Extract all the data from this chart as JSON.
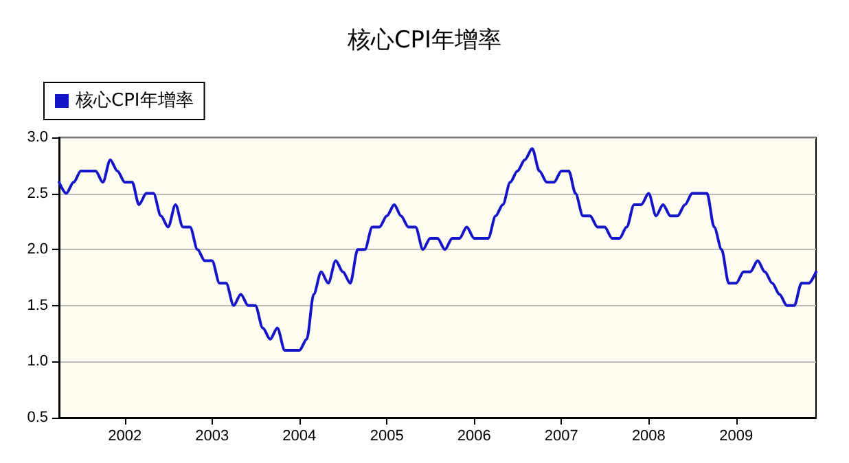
{
  "chart_data": {
    "type": "line",
    "title": "核心CPI年增率",
    "x": [
      "2001-04",
      "2001-05",
      "2001-06",
      "2001-07",
      "2001-08",
      "2001-09",
      "2001-10",
      "2001-11",
      "2001-12",
      "2002-01",
      "2002-02",
      "2002-03",
      "2002-04",
      "2002-05",
      "2002-06",
      "2002-07",
      "2002-08",
      "2002-09",
      "2002-10",
      "2002-11",
      "2002-12",
      "2003-01",
      "2003-02",
      "2003-03",
      "2003-04",
      "2003-05",
      "2003-06",
      "2003-07",
      "2003-08",
      "2003-09",
      "2003-10",
      "2003-11",
      "2003-12",
      "2004-01",
      "2004-02",
      "2004-03",
      "2004-04",
      "2004-05",
      "2004-06",
      "2004-07",
      "2004-08",
      "2004-09",
      "2004-10",
      "2004-11",
      "2004-12",
      "2005-01",
      "2005-02",
      "2005-03",
      "2005-04",
      "2005-05",
      "2005-06",
      "2005-07",
      "2005-08",
      "2005-09",
      "2005-10",
      "2005-11",
      "2005-12",
      "2006-01",
      "2006-02",
      "2006-03",
      "2006-04",
      "2006-05",
      "2006-06",
      "2006-07",
      "2006-08",
      "2006-09",
      "2006-10",
      "2006-11",
      "2006-12",
      "2007-01",
      "2007-02",
      "2007-03",
      "2007-04",
      "2007-05",
      "2007-06",
      "2007-07",
      "2007-08",
      "2007-09",
      "2007-10",
      "2007-11",
      "2007-12",
      "2008-01",
      "2008-02",
      "2008-03",
      "2008-04",
      "2008-05",
      "2008-06",
      "2008-07",
      "2008-08",
      "2008-09",
      "2008-10",
      "2008-11",
      "2008-12",
      "2009-01",
      "2009-02",
      "2009-03",
      "2009-04",
      "2009-05",
      "2009-06",
      "2009-07",
      "2009-08",
      "2009-09",
      "2009-10",
      "2009-11",
      "2009-12"
    ],
    "series": [
      {
        "name": "核心CPI年增率",
        "color": "#1414c8",
        "values": [
          2.6,
          2.5,
          2.6,
          2.7,
          2.7,
          2.7,
          2.6,
          2.8,
          2.7,
          2.6,
          2.6,
          2.4,
          2.5,
          2.5,
          2.3,
          2.2,
          2.4,
          2.2,
          2.2,
          2.0,
          1.9,
          1.9,
          1.7,
          1.7,
          1.5,
          1.6,
          1.5,
          1.5,
          1.3,
          1.2,
          1.3,
          1.1,
          1.1,
          1.1,
          1.2,
          1.6,
          1.8,
          1.7,
          1.9,
          1.8,
          1.7,
          2.0,
          2.0,
          2.2,
          2.2,
          2.3,
          2.4,
          2.3,
          2.2,
          2.2,
          2.0,
          2.1,
          2.1,
          2.0,
          2.1,
          2.1,
          2.2,
          2.1,
          2.1,
          2.1,
          2.3,
          2.4,
          2.6,
          2.7,
          2.8,
          2.9,
          2.7,
          2.6,
          2.6,
          2.7,
          2.7,
          2.5,
          2.3,
          2.3,
          2.2,
          2.2,
          2.1,
          2.1,
          2.2,
          2.4,
          2.4,
          2.5,
          2.3,
          2.4,
          2.3,
          2.3,
          2.4,
          2.5,
          2.5,
          2.5,
          2.2,
          2.0,
          1.7,
          1.7,
          1.8,
          1.8,
          1.9,
          1.8,
          1.7,
          1.6,
          1.5,
          1.5,
          1.7,
          1.7,
          1.8
        ]
      }
    ],
    "xlim": [
      "2001-04",
      "2009-12"
    ],
    "xticks": [
      {
        "value": "2002-01",
        "label": "2002"
      },
      {
        "value": "2003-01",
        "label": "2003"
      },
      {
        "value": "2004-01",
        "label": "2004"
      },
      {
        "value": "2005-01",
        "label": "2005"
      },
      {
        "value": "2006-01",
        "label": "2006"
      },
      {
        "value": "2007-01",
        "label": "2007"
      },
      {
        "value": "2008-01",
        "label": "2008"
      },
      {
        "value": "2009-01",
        "label": "2009"
      }
    ],
    "ylim": [
      0.5,
      3.0
    ],
    "yticks": [
      {
        "value": 0.5,
        "label": "0.5"
      },
      {
        "value": 1,
        "label": "1.0"
      },
      {
        "value": 1.5,
        "label": "1.5"
      },
      {
        "value": 2,
        "label": "2.0"
      },
      {
        "value": 2.5,
        "label": "2.5"
      },
      {
        "value": 3,
        "label": "3.0"
      }
    ],
    "grid": "y",
    "legend": "top left",
    "marker": "none",
    "line_style": "solid"
  }
}
